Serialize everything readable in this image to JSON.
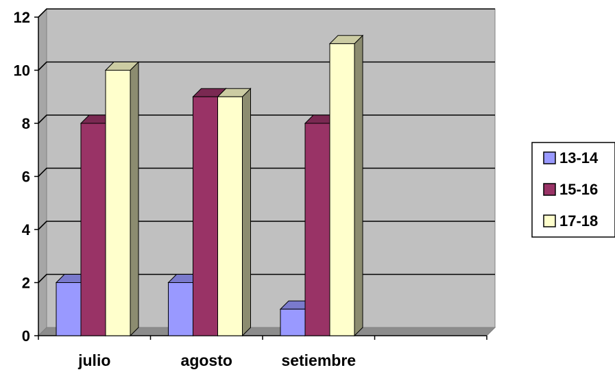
{
  "chart_data": {
    "type": "bar",
    "title": "",
    "xlabel": "",
    "ylabel": "",
    "categories": [
      "julio",
      "agosto",
      "setiembre",
      ""
    ],
    "series": [
      {
        "name": "13-14",
        "values": [
          2,
          2,
          1,
          null
        ],
        "color": "#9999FF"
      },
      {
        "name": "15-16",
        "values": [
          8,
          9,
          8,
          null
        ],
        "color": "#993366"
      },
      {
        "name": "17-18",
        "values": [
          10,
          9,
          11,
          null
        ],
        "color": "#FFFFCC"
      }
    ],
    "ylim": [
      0,
      12
    ],
    "yticks": [
      "0",
      "2",
      "4",
      "6",
      "8",
      "10",
      "12"
    ],
    "grid": true,
    "legend_position": "right",
    "style": "3d-clustered-column",
    "wall_color": "#C0C0C0"
  }
}
